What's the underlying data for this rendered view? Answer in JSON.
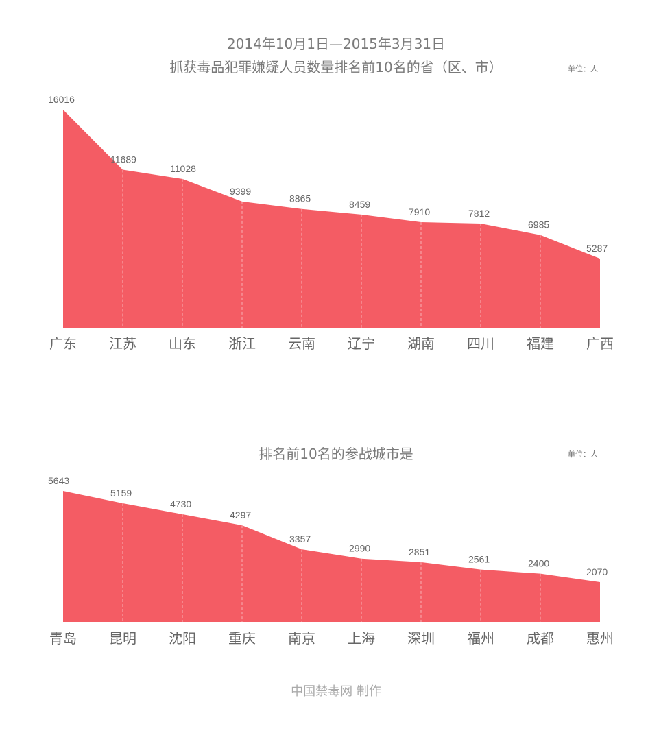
{
  "chart_data": [
    {
      "type": "area",
      "title": "2014年10月1日—2015年3月31日",
      "subtitle": "抓获毒品犯罪嫌疑人员数量排名前10名的省（区、市）",
      "unit": "单位：人",
      "categories": [
        "广东",
        "江苏",
        "山东",
        "浙江",
        "云南",
        "辽宁",
        "湖南",
        "四川",
        "福建",
        "广西"
      ],
      "values": [
        16016,
        11689,
        11028,
        9399,
        8865,
        8459,
        7910,
        7812,
        6985,
        5287
      ],
      "ylim": [
        300,
        16016
      ],
      "color": "#f45c64",
      "grid": false
    },
    {
      "type": "area",
      "title": "排名前10名的参战城市是",
      "unit": "单位：人",
      "categories": [
        "青岛",
        "昆明",
        "沈阳",
        "重庆",
        "南京",
        "上海",
        "深圳",
        "福州",
        "成都",
        "惠州"
      ],
      "values": [
        5643,
        5159,
        4730,
        4297,
        3357,
        2990,
        2851,
        2561,
        2400,
        2070
      ],
      "ylim": [
        510,
        5643
      ],
      "color": "#f45c64",
      "grid": false
    }
  ],
  "footer": "中国禁毒网 制作"
}
